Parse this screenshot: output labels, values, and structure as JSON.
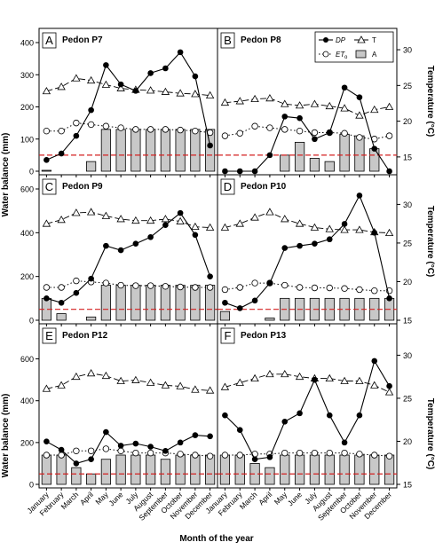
{
  "figure": {
    "xlabel": "Month of the year",
    "ylabel_left": "Water balance (mm)",
    "ylabel_right": "Temperature (°C)",
    "months": [
      "January",
      "February",
      "March",
      "April",
      "May",
      "June",
      "July",
      "August",
      "September",
      "October",
      "November",
      "December"
    ],
    "legend": {
      "dp": "DP",
      "et": "ET",
      "et_sub": "o",
      "t": "T",
      "a": "A"
    },
    "colors": {
      "bars": "#c8c8c8",
      "threshold": "#d42020",
      "lines": "#000000"
    }
  },
  "chart_data": [
    {
      "type": "line",
      "letter": "A",
      "title": "Pedon P7",
      "ylim": [
        0,
        400
      ],
      "yticks": [
        "0",
        "100",
        "200",
        "300",
        "400"
      ],
      "tlim": [
        13,
        31
      ],
      "tticks": [
        "15",
        "20",
        "25",
        "30"
      ],
      "threshold": 50,
      "series": [
        {
          "name": "DP",
          "values": [
            35,
            55,
            110,
            190,
            330,
            270,
            250,
            305,
            320,
            370,
            295,
            80
          ]
        },
        {
          "name": "ETo",
          "values": [
            125,
            125,
            150,
            145,
            140,
            135,
            130,
            130,
            130,
            128,
            125,
            120
          ]
        },
        {
          "name": "T",
          "values": [
            24.2,
            24.8,
            26.0,
            25.7,
            25.1,
            24.6,
            24.4,
            24.3,
            24.1,
            23.9,
            23.8,
            23.6
          ]
        },
        {
          "name": "A",
          "values": [
            0,
            null,
            null,
            30,
            130,
            130,
            130,
            130,
            130,
            130,
            130,
            130
          ]
        }
      ]
    },
    {
      "type": "line",
      "letter": "B",
      "title": "Pedon P8",
      "ylim": [
        0,
        400
      ],
      "yticks": [],
      "tlim": [
        13,
        31
      ],
      "tticks": [
        "15",
        "20",
        "25",
        "30"
      ],
      "threshold": 50,
      "series": [
        {
          "name": "DP",
          "values": [
            0,
            0,
            0,
            50,
            170,
            165,
            100,
            120,
            260,
            230,
            70,
            0
          ]
        },
        {
          "name": "ETo",
          "values": [
            110,
            118,
            140,
            135,
            130,
            125,
            120,
            120,
            118,
            105,
            100,
            110
          ]
        },
        {
          "name": "T",
          "values": [
            22.6,
            22.8,
            23.1,
            23.2,
            22.4,
            22.2,
            22.4,
            22.1,
            21.8,
            20.8,
            21.6,
            22.0
          ]
        },
        {
          "name": "A",
          "values": [
            null,
            null,
            null,
            null,
            50,
            90,
            40,
            30,
            115,
            110,
            70,
            null
          ]
        }
      ]
    },
    {
      "type": "line",
      "letter": "C",
      "title": "Pedon P9",
      "ylim": [
        0,
        600
      ],
      "yticks": [
        "0",
        "200",
        "400",
        "600"
      ],
      "tlim": [
        15,
        32
      ],
      "tticks": [
        "15",
        "20",
        "25",
        "30"
      ],
      "threshold": 50,
      "series": [
        {
          "name": "DP",
          "values": [
            100,
            80,
            125,
            190,
            340,
            320,
            350,
            380,
            435,
            490,
            390,
            200
          ]
        },
        {
          "name": "ETo",
          "values": [
            150,
            150,
            180,
            175,
            170,
            160,
            158,
            158,
            155,
            152,
            150,
            150
          ]
        },
        {
          "name": "T",
          "values": [
            27.5,
            28.0,
            28.9,
            29.0,
            28.5,
            28.1,
            27.9,
            27.9,
            28.1,
            27.8,
            27.1,
            27.0
          ]
        },
        {
          "name": "A",
          "values": [
            100,
            30,
            null,
            15,
            160,
            160,
            160,
            160,
            160,
            160,
            160,
            160
          ]
        }
      ]
    },
    {
      "type": "line",
      "letter": "D",
      "title": "Pedon P10",
      "ylim": [
        0,
        600
      ],
      "yticks": [],
      "tlim": [
        15,
        32
      ],
      "tticks": [
        "15",
        "20",
        "25",
        "30"
      ],
      "threshold": 50,
      "series": [
        {
          "name": "DP",
          "values": [
            80,
            55,
            90,
            170,
            330,
            340,
            350,
            370,
            440,
            570,
            400,
            100
          ]
        },
        {
          "name": "ETo",
          "values": [
            140,
            150,
            170,
            170,
            160,
            150,
            148,
            148,
            145,
            140,
            135,
            135
          ]
        },
        {
          "name": "T",
          "values": [
            27.0,
            27.5,
            28.3,
            29.0,
            28.1,
            27.5,
            27.0,
            26.8,
            26.7,
            26.7,
            26.4,
            26.3
          ]
        },
        {
          "name": "A",
          "values": [
            40,
            null,
            null,
            10,
            100,
            100,
            100,
            100,
            100,
            100,
            100,
            100
          ]
        }
      ]
    },
    {
      "type": "line",
      "letter": "E",
      "title": "Pedon P12",
      "ylim": [
        0,
        700
      ],
      "yticks": [
        "0",
        "200",
        "400",
        "600"
      ],
      "tlim": [
        15,
        32
      ],
      "tticks": [
        "15",
        "20",
        "25",
        "30"
      ],
      "threshold": 50,
      "series": [
        {
          "name": "DP",
          "values": [
            205,
            165,
            100,
            120,
            250,
            185,
            195,
            180,
            160,
            200,
            235,
            230
          ]
        },
        {
          "name": "ETo",
          "values": [
            140,
            140,
            160,
            160,
            170,
            160,
            150,
            150,
            150,
            145,
            140,
            135
          ]
        },
        {
          "name": "T",
          "values": [
            26.1,
            26.5,
            27.5,
            27.9,
            27.6,
            27.0,
            27.1,
            26.8,
            26.5,
            26.4,
            26.0,
            25.9
          ]
        },
        {
          "name": "A",
          "values": [
            140,
            140,
            80,
            50,
            120,
            140,
            140,
            140,
            120,
            140,
            140,
            140
          ]
        }
      ]
    },
    {
      "type": "line",
      "letter": "F",
      "title": "Pedon P13",
      "ylim": [
        0,
        700
      ],
      "yticks": [],
      "tlim": [
        15,
        32
      ],
      "tticks": [
        "15",
        "20",
        "25",
        "30"
      ],
      "threshold": 50,
      "series": [
        {
          "name": "DP",
          "values": [
            330,
            260,
            120,
            130,
            300,
            340,
            500,
            330,
            200,
            330,
            590,
            470
          ]
        },
        {
          "name": "ETo",
          "values": [
            140,
            140,
            145,
            145,
            150,
            150,
            150,
            150,
            150,
            145,
            140,
            135
          ]
        },
        {
          "name": "T",
          "values": [
            26.3,
            26.8,
            27.3,
            27.8,
            27.8,
            27.5,
            27.3,
            27.3,
            27.0,
            27.0,
            26.5,
            25.7
          ]
        },
        {
          "name": "A",
          "values": [
            140,
            140,
            100,
            80,
            140,
            140,
            140,
            140,
            140,
            140,
            140,
            140
          ]
        }
      ]
    }
  ]
}
